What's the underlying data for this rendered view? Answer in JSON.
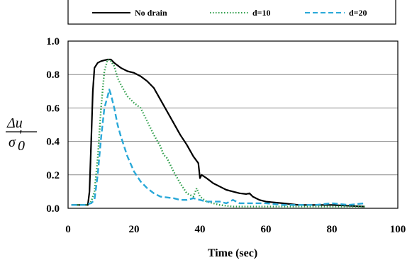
{
  "chart_data": {
    "type": "line",
    "title": "",
    "xlabel": "Time (sec)",
    "ylabel": {
      "numerator": "Δu",
      "denominator": "σ",
      "denominator_sub": "0",
      "denominator_sup": "'"
    },
    "xlim": [
      0,
      100
    ],
    "ylim": [
      0,
      1.0
    ],
    "x_ticks": [
      "0",
      "20",
      "40",
      "60",
      "80",
      "100"
    ],
    "y_ticks": [
      "0.0",
      "0.2",
      "0.4",
      "0.6",
      "0.8",
      "1.0"
    ],
    "grid": "horizontal",
    "legend_position": "top",
    "series": [
      {
        "name": "No drain",
        "color": "#000000",
        "style": "solid",
        "x": [
          1,
          4,
          6,
          6.5,
          7,
          7.5,
          8,
          9,
          10,
          11,
          12,
          13,
          14,
          16,
          18,
          20,
          22,
          24,
          26,
          28,
          30,
          32,
          34,
          36,
          38,
          39.5,
          40,
          40.5,
          42,
          44,
          46,
          48,
          50,
          52,
          54,
          55,
          56,
          58,
          60,
          65,
          70,
          80,
          90
        ],
        "y": [
          0.02,
          0.02,
          0.02,
          0.1,
          0.4,
          0.7,
          0.84,
          0.87,
          0.88,
          0.885,
          0.89,
          0.89,
          0.87,
          0.84,
          0.82,
          0.81,
          0.79,
          0.76,
          0.72,
          0.65,
          0.58,
          0.51,
          0.44,
          0.38,
          0.31,
          0.27,
          0.18,
          0.2,
          0.18,
          0.15,
          0.13,
          0.11,
          0.1,
          0.09,
          0.085,
          0.09,
          0.07,
          0.05,
          0.04,
          0.03,
          0.02,
          0.02,
          0.01
        ]
      },
      {
        "name": "d=10",
        "color": "#2e9e4a",
        "style": "dotted",
        "x": [
          2,
          6,
          7,
          8,
          9,
          10,
          11,
          12,
          13,
          14,
          15,
          16,
          18,
          20,
          22,
          24,
          26,
          28,
          29,
          30,
          32,
          34,
          36,
          38,
          39,
          40,
          42,
          44,
          46,
          50,
          60,
          70,
          80,
          90
        ],
        "y": [
          0.02,
          0.02,
          0.04,
          0.1,
          0.3,
          0.6,
          0.82,
          0.89,
          0.88,
          0.85,
          0.78,
          0.74,
          0.67,
          0.63,
          0.6,
          0.52,
          0.44,
          0.37,
          0.32,
          0.3,
          0.22,
          0.15,
          0.09,
          0.07,
          0.12,
          0.07,
          0.04,
          0.03,
          0.02,
          0.01,
          0.01,
          0.01,
          0.01,
          0.01
        ]
      },
      {
        "name": "d=20",
        "color": "#29a8d8",
        "style": "dashed",
        "x": [
          1,
          5,
          7,
          8,
          9,
          10,
          11,
          12,
          12.5,
          13,
          14,
          15,
          16,
          18,
          20,
          22,
          24,
          26,
          28,
          30,
          32,
          34,
          36,
          38,
          40,
          42,
          44,
          46,
          48,
          50,
          52,
          55,
          60,
          65,
          70,
          75,
          80,
          85,
          90
        ],
        "y": [
          0.02,
          0.02,
          0.03,
          0.05,
          0.2,
          0.42,
          0.6,
          0.67,
          0.71,
          0.68,
          0.6,
          0.5,
          0.43,
          0.31,
          0.22,
          0.16,
          0.12,
          0.09,
          0.07,
          0.065,
          0.06,
          0.05,
          0.05,
          0.06,
          0.05,
          0.04,
          0.04,
          0.04,
          0.03,
          0.05,
          0.03,
          0.03,
          0.03,
          0.02,
          0.02,
          0.02,
          0.03,
          0.02,
          0.03
        ]
      }
    ]
  }
}
